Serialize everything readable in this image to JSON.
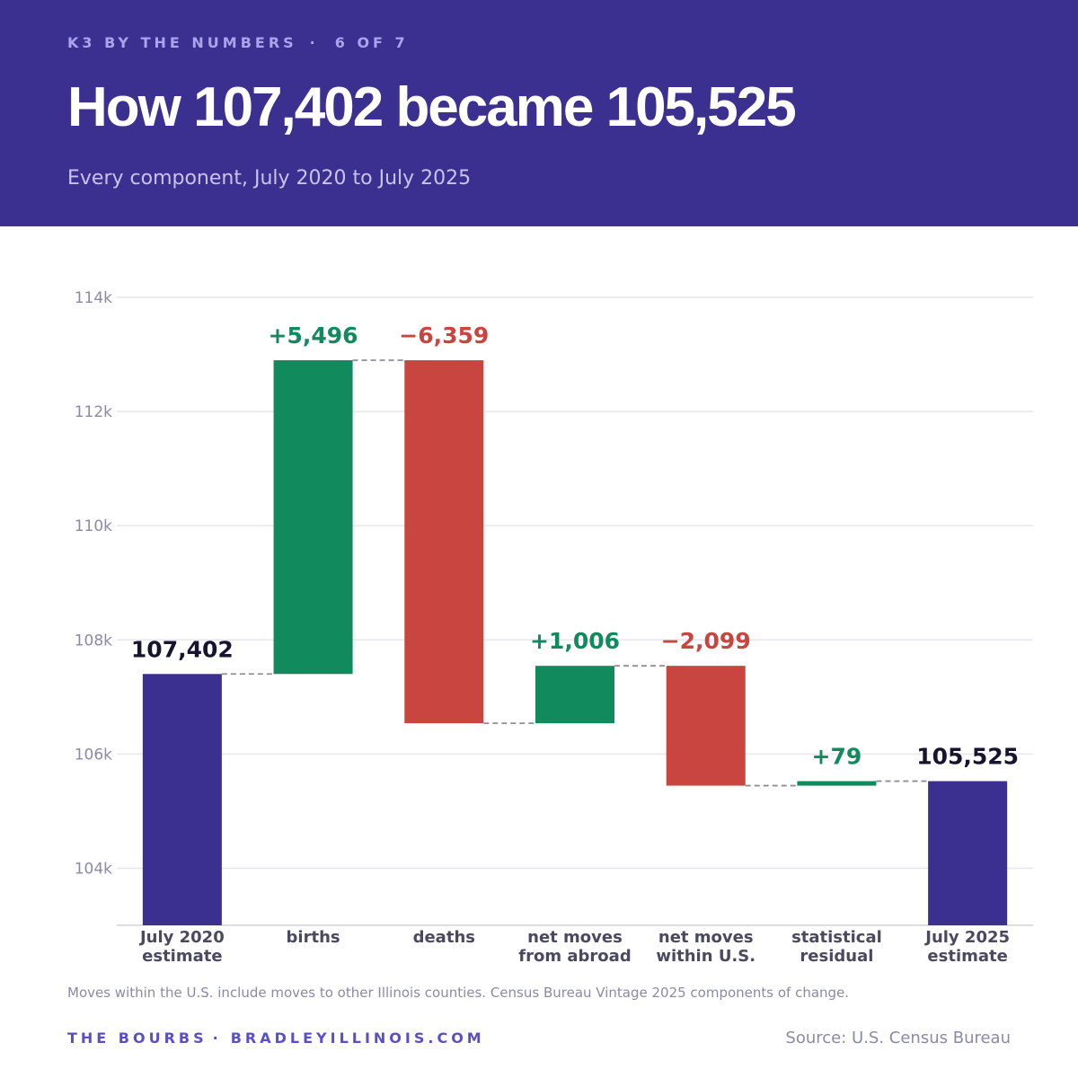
{
  "header": {
    "series_name": "K3 BY THE NUMBERS",
    "separator": "·",
    "page_indicator": "6 OF 7",
    "title": "How 107,402 became 105,525",
    "subtitle": "Every component, July 2020 to July 2025"
  },
  "colors": {
    "header_bg": "#3b2f8f",
    "total": "#3b2f8f",
    "increase": "#118a5e",
    "decrease": "#c9453f",
    "connector": "#8f8f99"
  },
  "chart_data": {
    "type": "waterfall",
    "ylim": [
      103000,
      114000
    ],
    "yticks": [
      104000,
      106000,
      108000,
      110000,
      112000,
      114000
    ],
    "ytick_labels": [
      "104k",
      "106k",
      "108k",
      "110k",
      "112k",
      "114k"
    ],
    "grid": true,
    "steps": [
      {
        "category": [
          "July 2020",
          "estimate"
        ],
        "kind": "total",
        "value": 107402,
        "label": "107,402"
      },
      {
        "category": [
          "births"
        ],
        "kind": "increase",
        "value": 5496,
        "label": "+5,496"
      },
      {
        "category": [
          "deaths"
        ],
        "kind": "decrease",
        "value": -6359,
        "label": "−6,359"
      },
      {
        "category": [
          "net moves",
          "from abroad"
        ],
        "kind": "increase",
        "value": 1006,
        "label": "+1,006"
      },
      {
        "category": [
          "net moves",
          "within U.S."
        ],
        "kind": "decrease",
        "value": -2099,
        "label": "−2,099"
      },
      {
        "category": [
          "statistical",
          "residual"
        ],
        "kind": "increase",
        "value": 79,
        "label": "+79"
      },
      {
        "category": [
          "July 2025",
          "estimate"
        ],
        "kind": "total",
        "value": 105525,
        "label": "105,525"
      }
    ]
  },
  "footer": {
    "note": "Moves within the U.S. include moves to other Illinois counties. Census Bureau Vintage 2025 components of change.",
    "brand_left": "THE BOURBS",
    "brand_separator": "·",
    "brand_right": "BRADLEYILLINOIS.COM",
    "source": "Source: U.S. Census Bureau"
  }
}
